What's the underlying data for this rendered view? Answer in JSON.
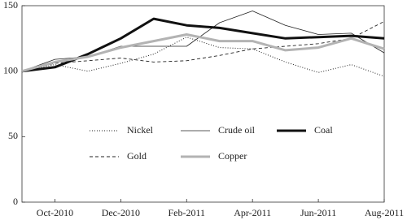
{
  "chart_data": {
    "type": "line",
    "categories": [
      null,
      "Oct-2010",
      null,
      "Dec-2010",
      null,
      "Feb-2011",
      null,
      "Apr-2011",
      null,
      "Jun-2011",
      null,
      "Aug-2011"
    ],
    "series": [
      {
        "name": "Nickel",
        "color": "#222222",
        "style": "dotted",
        "values": [
          100,
          105,
          100,
          106,
          113,
          126,
          118,
          117,
          107,
          99,
          105,
          96
        ]
      },
      {
        "name": "Crude oil",
        "color": "#222222",
        "style": "solid",
        "values": [
          100,
          109,
          111,
          119,
          119,
          119,
          137,
          146,
          135,
          128,
          129,
          114
        ]
      },
      {
        "name": "Coal",
        "color": "#111111",
        "style": "bold",
        "values": [
          100,
          103,
          113,
          125,
          140,
          135,
          133,
          129,
          125,
          126,
          127,
          125
        ]
      },
      {
        "name": "Gold",
        "color": "#222222",
        "style": "dashed",
        "values": [
          100,
          106,
          108,
          110,
          107,
          108,
          112,
          117,
          119,
          121,
          125,
          138
        ]
      },
      {
        "name": "Copper",
        "color": "#b3b3b3",
        "style": "bold",
        "values": [
          100,
          107,
          111,
          118,
          123,
          128,
          123,
          123,
          116,
          118,
          125,
          117
        ]
      }
    ],
    "ylim": [
      0,
      150
    ],
    "yticks": [
      0,
      50,
      100,
      150
    ],
    "grid": false,
    "legend": "center"
  }
}
